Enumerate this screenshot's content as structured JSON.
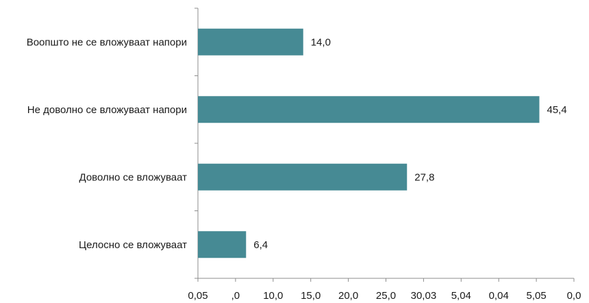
{
  "chart_data": {
    "type": "bar",
    "orientation": "horizontal",
    "title": "",
    "xlabel": "",
    "ylabel": "",
    "categories": [
      "Воопшто не се вложуваат напори",
      "Не доволно се вложуваат напори",
      "Доволно се вложуваат",
      "Целосно се вложуваат"
    ],
    "values": [
      14.0,
      45.4,
      27.8,
      6.4
    ],
    "value_labels": [
      "14,0",
      "45,4",
      "27,8",
      "6,4"
    ],
    "xlim": [
      0,
      50
    ],
    "x_tick_labels": [
      "0,05",
      ",0",
      "10,0",
      "15,0",
      "20,0",
      "25,0",
      "30,03",
      "5,04",
      "0,04",
      "5,05",
      "0,0"
    ],
    "bar_color": "#468a94",
    "axis_color": "#8c8c8c",
    "grid": false,
    "legend": "none"
  }
}
